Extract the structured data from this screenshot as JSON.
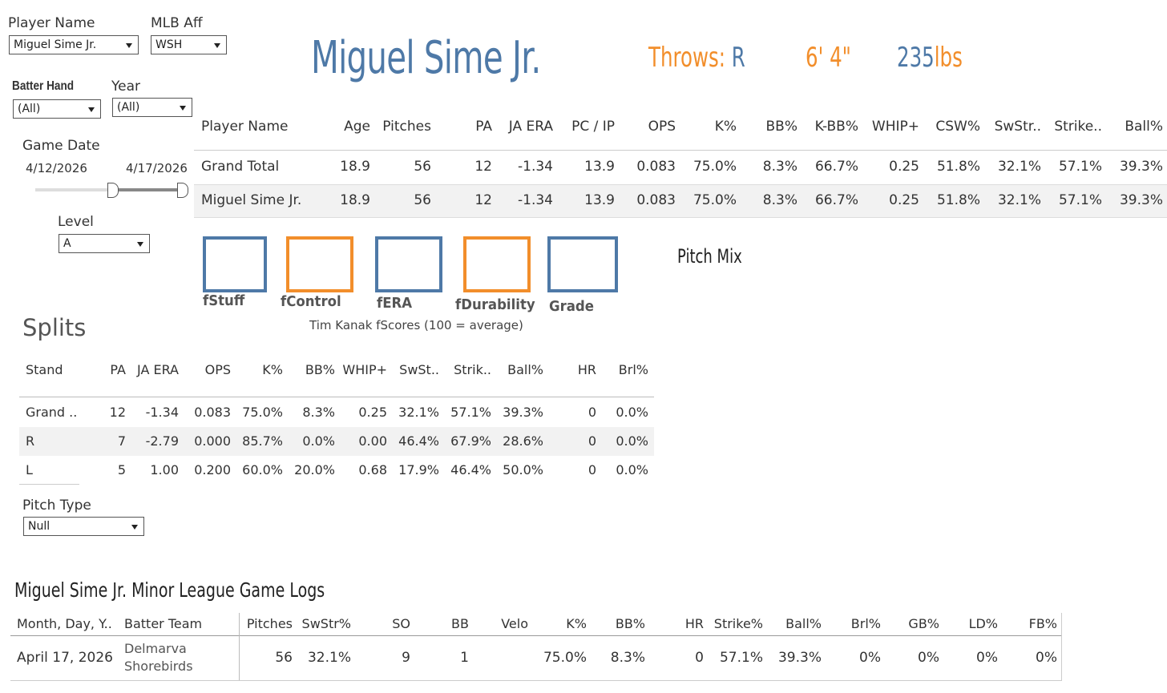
{
  "filters": {
    "player_name": {
      "label": "Player Name",
      "value": "Miguel Sime Jr."
    },
    "mlb_aff": {
      "label": "MLB Aff",
      "value": "WSH"
    },
    "batter_hand": {
      "label": "Batter Hand",
      "value": "(All)"
    },
    "year": {
      "label": "Year",
      "value": "(All)"
    },
    "game_date": {
      "label": "Game Date",
      "start": "4/12/2026",
      "end": "4/17/2026"
    },
    "level": {
      "label": "Level",
      "value": "A"
    },
    "pitch_type": {
      "label": "Pitch Type",
      "value": "Null"
    }
  },
  "header": {
    "name": "Miguel Sime Jr.",
    "throws_label": "Throws: ",
    "throws_value": "R",
    "height": "6' 4\"",
    "weight_value": "235",
    "weight_unit": "lbs"
  },
  "colors": {
    "blue": "#4e79a7",
    "orange": "#f28e2b"
  },
  "summary": {
    "headers": [
      "Player Name",
      "Age",
      "Pitches",
      "PA",
      "JA ERA",
      "PC / IP",
      "OPS",
      "K%",
      "BB%",
      "K-BB%",
      "WHIP+",
      "CSW%",
      "SwStr..",
      "Strike..",
      "Ball%"
    ],
    "rows": [
      [
        "Grand Total",
        "18.9",
        "56",
        "12",
        "-1.34",
        "13.9",
        "0.083",
        "75.0%",
        "8.3%",
        "66.7%",
        "0.25",
        "51.8%",
        "32.1%",
        "57.1%",
        "39.3%"
      ],
      [
        "Miguel Sime Jr.",
        "18.9",
        "56",
        "12",
        "-1.34",
        "13.9",
        "0.083",
        "75.0%",
        "8.3%",
        "66.7%",
        "0.25",
        "51.8%",
        "32.1%",
        "57.1%",
        "39.3%"
      ]
    ]
  },
  "fscores": {
    "items": [
      {
        "label": "fStuff",
        "color": "#4e79a7"
      },
      {
        "label": "fControl",
        "color": "#f28e2b"
      },
      {
        "label": "fERA",
        "color": "#4e79a7"
      },
      {
        "label": "fDurability",
        "color": "#f28e2b"
      },
      {
        "label": "Grade",
        "color": "#4e79a7"
      }
    ],
    "caption": "Tim Kanak fScores (100 = average)"
  },
  "pitch_mix_title": "Pitch Mix",
  "splits": {
    "title": "Splits",
    "headers": [
      "Stand",
      "PA",
      "JA ERA",
      "OPS",
      "K%",
      "BB%",
      "WHIP+",
      "SwSt..",
      "Strik..",
      "Ball%",
      "HR",
      "Brl%"
    ],
    "rows": [
      [
        "Grand ..",
        "12",
        "-1.34",
        "0.083",
        "75.0%",
        "8.3%",
        "0.25",
        "32.1%",
        "57.1%",
        "39.3%",
        "0",
        "0.0%"
      ],
      [
        "R",
        "7",
        "-2.79",
        "0.000",
        "85.7%",
        "0.0%",
        "0.00",
        "46.4%",
        "67.9%",
        "28.6%",
        "0",
        "0.0%"
      ],
      [
        "L",
        "5",
        "1.00",
        "0.200",
        "60.0%",
        "20.0%",
        "0.68",
        "17.9%",
        "46.4%",
        "50.0%",
        "0",
        "0.0%"
      ]
    ]
  },
  "gamelogs": {
    "title": "Miguel Sime Jr. Minor League Game Logs",
    "headers": [
      "Month, Day, Y..",
      "Batter Team",
      "Pitches",
      "SwStr%",
      "SO",
      "BB",
      "Velo",
      "K%",
      "BB%",
      "HR",
      "Strike%",
      "Ball%",
      "Brl%",
      "GB%",
      "LD%",
      "FB%"
    ],
    "rows": [
      {
        "date": "April 17, 2026",
        "team_line1": "Delmarva",
        "team_line2": "Shorebirds",
        "values": [
          "56",
          "32.1%",
          "9",
          "1",
          "",
          "75.0%",
          "8.3%",
          "0",
          "57.1%",
          "39.3%",
          "0%",
          "0%",
          "0%",
          "0%"
        ]
      }
    ]
  }
}
